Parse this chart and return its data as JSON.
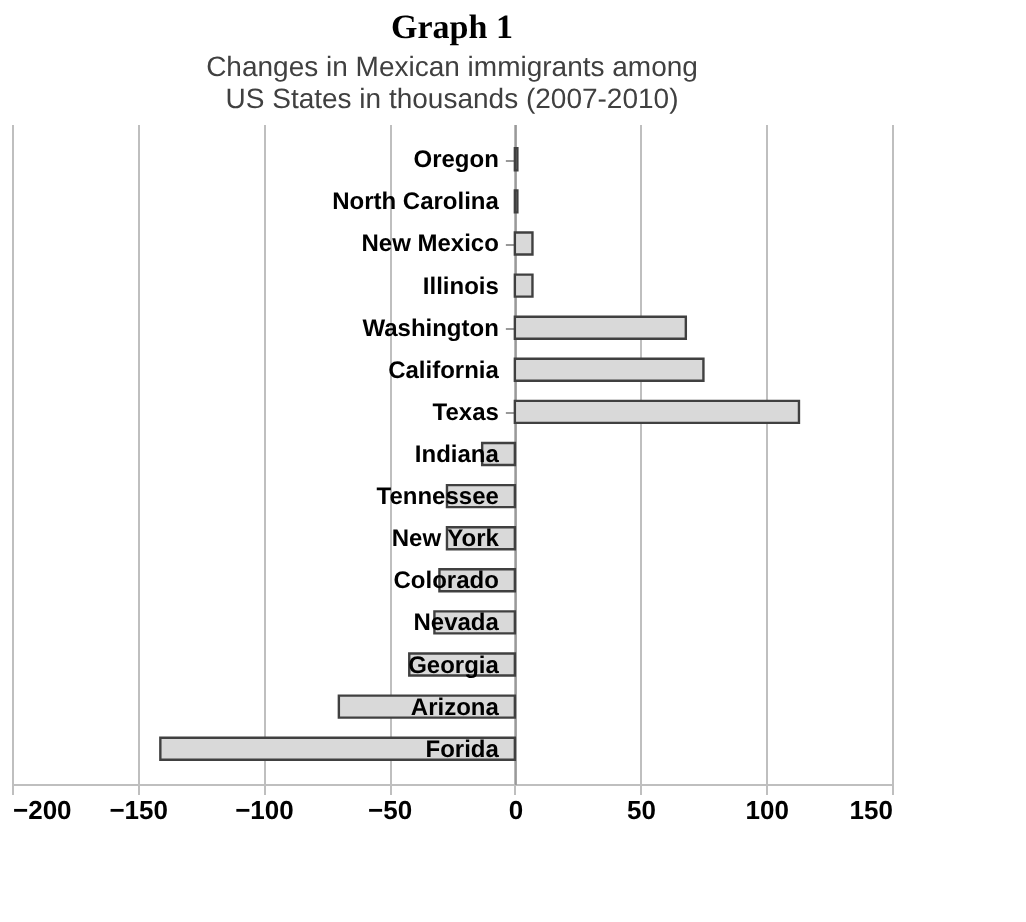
{
  "chart_data": {
    "type": "bar",
    "orientation": "horizontal",
    "title": "Graph 1",
    "subtitle": "Changes in Mexican immigrants among US States in thousands (2007-2010)",
    "categories": [
      "Oregon",
      "North Carolina",
      "New Mexico",
      "Illinois",
      "Washington",
      "California",
      "Texas",
      "Indiana",
      "Tennessee",
      "New York",
      "Colorado",
      "Nevada",
      "Georgia",
      "Arizona",
      "Forida"
    ],
    "values": [
      1,
      1,
      7,
      7,
      68,
      75,
      113,
      -13,
      -27,
      -27,
      -30,
      -32,
      -42,
      -70,
      -141
    ],
    "color": "#d9d9d9",
    "xlim": [
      -200,
      150
    ],
    "xticks": [
      -200,
      -150,
      -100,
      -50,
      0,
      50,
      100,
      150
    ],
    "grid": "x"
  }
}
